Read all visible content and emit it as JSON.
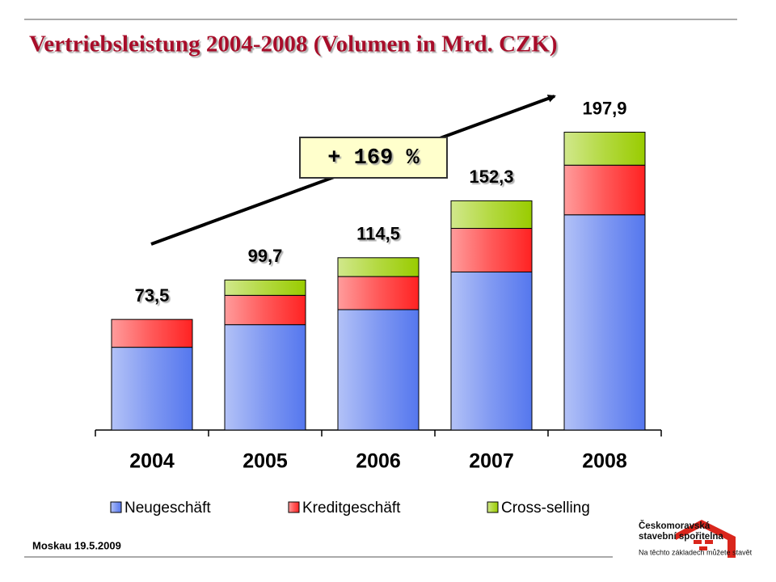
{
  "chart_data": {
    "type": "stacked_bar",
    "title": "Vertriebsleistung 2004-2008 (Volumen in Mrd. CZK)",
    "annotation": "+ 169 %",
    "categories": [
      "2004",
      "2005",
      "2006",
      "2007",
      "2008"
    ],
    "series": [
      {
        "name": "Neugeschäft",
        "color": "#5577ee",
        "values": [
          55,
          70,
          80,
          105,
          143
        ]
      },
      {
        "name": "Kreditgeschäft",
        "color": "#ff2222",
        "values": [
          18.5,
          19.5,
          22,
          29,
          33
        ]
      },
      {
        "name": "Cross-selling",
        "color": "#99cc00",
        "values": [
          0,
          10.2,
          12.5,
          18.3,
          21.9
        ]
      }
    ],
    "totals": [
      73.5,
      99.7,
      114.5,
      152.3,
      197.9
    ],
    "total_labels": [
      "73,5",
      "99,7",
      "114,5",
      "152,3",
      "197,9"
    ],
    "ylim": [
      0,
      210
    ],
    "legend": "bottom"
  },
  "footer": "Moskau  19.5.2009",
  "logo": {
    "name_line1": "Českomoravská",
    "name_line2": "stavební spořitelna",
    "slogan": "Na těchto základech můžete stavět"
  }
}
